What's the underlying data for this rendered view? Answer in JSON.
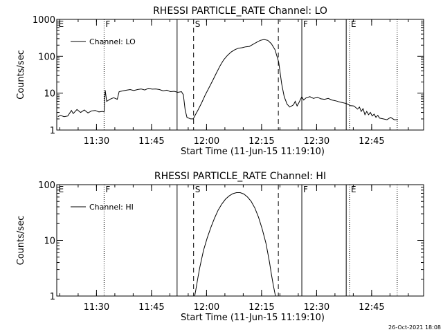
{
  "colors": {
    "background": "#ffffff",
    "ink": "#000000"
  },
  "footer": {
    "timestamp": "26-Oct-2021 18:08"
  },
  "chart_data": [
    {
      "type": "line",
      "title": "RHESSI PARTICLE_RATE Channel: LO",
      "xlabel": "Start Time (11-Jun-15 11:19:10)",
      "ylabel": "Counts/sec",
      "yscale": "log",
      "ylim": [
        1,
        1000
      ],
      "xlim": [
        0,
        100
      ],
      "x_unit": "minutes after 11:19:10",
      "legend": {
        "position": "top-left",
        "label": "Channel: LO"
      },
      "xticks": [
        {
          "label": "11:30",
          "x": 10.83
        },
        {
          "label": "11:45",
          "x": 25.83
        },
        {
          "label": "12:00",
          "x": 40.83
        },
        {
          "label": "12:15",
          "x": 55.83
        },
        {
          "label": "12:30",
          "x": 70.83
        },
        {
          "label": "12:45",
          "x": 85.83
        }
      ],
      "yticks": [
        {
          "label": "1",
          "value": 1
        },
        {
          "label": "10",
          "value": 10
        },
        {
          "label": "100",
          "value": 100
        },
        {
          "label": "1000",
          "value": 1000
        }
      ],
      "markers": [
        {
          "x": 12.9,
          "style": "dotted",
          "label": "F"
        },
        {
          "x": 32.8,
          "style": "solid",
          "label": ""
        },
        {
          "x": 37.3,
          "style": "dashed",
          "label": "S"
        },
        {
          "x": 60.4,
          "style": "dashed",
          "label": ""
        },
        {
          "x": 66.8,
          "style": "solid",
          "label": "F"
        },
        {
          "x": 78.9,
          "style": "solid",
          "label": ""
        },
        {
          "x": 79.8,
          "style": "dotted",
          "label": "E"
        },
        {
          "x": 92.8,
          "style": "dotted",
          "label": ""
        }
      ],
      "edge_label": {
        "x": 0.3,
        "label": "E"
      },
      "series": [
        {
          "name": "Channel: LO",
          "points": [
            [
              0.3,
              2.3
            ],
            [
              1,
              2.5
            ],
            [
              2,
              2.3
            ],
            [
              3,
              2.4
            ],
            [
              4,
              3.4
            ],
            [
              4.5,
              2.8
            ],
            [
              5.5,
              3.6
            ],
            [
              6.5,
              3.0
            ],
            [
              7.5,
              3.5
            ],
            [
              8.5,
              2.9
            ],
            [
              9.5,
              3.3
            ],
            [
              10.5,
              3.4
            ],
            [
              11.5,
              3.1
            ],
            [
              12.5,
              3.2
            ],
            [
              12.9,
              3.1
            ],
            [
              13.2,
              12
            ],
            [
              13.6,
              6.0
            ],
            [
              14.5,
              6.8
            ],
            [
              15.5,
              7.5
            ],
            [
              16.5,
              6.8
            ],
            [
              17,
              11
            ],
            [
              18,
              11.5
            ],
            [
              19,
              12
            ],
            [
              20,
              12.5
            ],
            [
              21,
              11.8
            ],
            [
              22,
              12.5
            ],
            [
              23,
              13
            ],
            [
              24,
              12.2
            ],
            [
              25,
              13.5
            ],
            [
              26,
              12.8
            ],
            [
              27,
              13
            ],
            [
              28,
              12.5
            ],
            [
              29,
              11.5
            ],
            [
              30,
              12
            ],
            [
              31,
              11
            ],
            [
              32,
              11.2
            ],
            [
              33,
              10.5
            ],
            [
              34,
              11
            ],
            [
              34.5,
              9
            ],
            [
              35,
              3.5
            ],
            [
              35.5,
              2.2
            ],
            [
              36.5,
              2.0
            ],
            [
              37.2,
              2.0
            ],
            [
              37.8,
              2.6
            ],
            [
              38.5,
              3.5
            ],
            [
              39.5,
              5.5
            ],
            [
              40.5,
              9
            ],
            [
              41.5,
              14
            ],
            [
              42.5,
              22
            ],
            [
              43.5,
              35
            ],
            [
              44.5,
              55
            ],
            [
              45.5,
              80
            ],
            [
              46.5,
              105
            ],
            [
              47.5,
              130
            ],
            [
              48.5,
              150
            ],
            [
              49.5,
              165
            ],
            [
              50.5,
              170
            ],
            [
              51.5,
              180
            ],
            [
              52.5,
              185
            ],
            [
              53.5,
              210
            ],
            [
              54.5,
              240
            ],
            [
              55.5,
              270
            ],
            [
              56.5,
              285
            ],
            [
              57.5,
              270
            ],
            [
              58.5,
              220
            ],
            [
              59.5,
              150
            ],
            [
              60.5,
              70
            ],
            [
              61.3,
              18
            ],
            [
              62,
              8
            ],
            [
              62.8,
              5
            ],
            [
              63.5,
              4.2
            ],
            [
              64.5,
              4.8
            ],
            [
              65,
              6
            ],
            [
              65.5,
              4.5
            ],
            [
              66,
              5.5
            ],
            [
              66.8,
              8
            ],
            [
              67.3,
              6.5
            ],
            [
              68,
              7.5
            ],
            [
              69,
              8.0
            ],
            [
              70,
              7.2
            ],
            [
              71,
              7.8
            ],
            [
              72,
              7.0
            ],
            [
              73,
              6.8
            ],
            [
              74,
              7.2
            ],
            [
              75,
              6.5
            ],
            [
              76,
              6.2
            ],
            [
              77,
              5.8
            ],
            [
              78,
              5.5
            ],
            [
              79,
              5.2
            ],
            [
              80,
              4.6
            ],
            [
              81,
              4.5
            ],
            [
              82,
              3.7
            ],
            [
              82.5,
              4.2
            ],
            [
              83,
              3.2
            ],
            [
              83.5,
              3.8
            ],
            [
              84,
              2.6
            ],
            [
              84.5,
              3.2
            ],
            [
              85,
              2.6
            ],
            [
              85.5,
              3.0
            ],
            [
              86,
              2.4
            ],
            [
              86.5,
              2.7
            ],
            [
              87,
              2.2
            ],
            [
              87.5,
              2.5
            ],
            [
              88,
              2.1
            ],
            [
              89,
              2.0
            ],
            [
              90,
              1.9
            ],
            [
              91,
              2.2
            ],
            [
              92,
              1.9
            ],
            [
              93,
              1.9
            ]
          ]
        }
      ]
    },
    {
      "type": "line",
      "title": "RHESSI PARTICLE_RATE Channel: HI",
      "xlabel": "Start Time (11-Jun-15 11:19:10)",
      "ylabel": "Counts/sec",
      "yscale": "log",
      "ylim": [
        1,
        100
      ],
      "xlim": [
        0,
        100
      ],
      "x_unit": "minutes after 11:19:10",
      "legend": {
        "position": "top-left",
        "label": "Channel: HI"
      },
      "xticks": [
        {
          "label": "11:30",
          "x": 10.83
        },
        {
          "label": "11:45",
          "x": 25.83
        },
        {
          "label": "12:00",
          "x": 40.83
        },
        {
          "label": "12:15",
          "x": 55.83
        },
        {
          "label": "12:30",
          "x": 70.83
        },
        {
          "label": "12:45",
          "x": 85.83
        }
      ],
      "yticks": [
        {
          "label": "1",
          "value": 1
        },
        {
          "label": "10",
          "value": 10
        },
        {
          "label": "100",
          "value": 100
        }
      ],
      "markers": [
        {
          "x": 12.9,
          "style": "dotted",
          "label": "F"
        },
        {
          "x": 32.8,
          "style": "solid",
          "label": ""
        },
        {
          "x": 37.3,
          "style": "dashed",
          "label": "S"
        },
        {
          "x": 60.4,
          "style": "dashed",
          "label": ""
        },
        {
          "x": 66.8,
          "style": "solid",
          "label": "F"
        },
        {
          "x": 78.9,
          "style": "solid",
          "label": ""
        },
        {
          "x": 79.8,
          "style": "dotted",
          "label": "E"
        },
        {
          "x": 92.8,
          "style": "dotted",
          "label": ""
        }
      ],
      "edge_label": {
        "x": 0.3,
        "label": "E"
      },
      "series": [
        {
          "name": "Channel: HI",
          "points": [
            [
              37.6,
              1.0
            ],
            [
              38,
              1.4
            ],
            [
              38.5,
              2.2
            ],
            [
              39,
              3.3
            ],
            [
              39.5,
              4.7
            ],
            [
              40,
              6.6
            ],
            [
              41,
              11
            ],
            [
              42,
              17
            ],
            [
              43,
              25
            ],
            [
              44,
              35
            ],
            [
              45,
              45
            ],
            [
              46,
              55
            ],
            [
              47,
              63
            ],
            [
              48,
              69
            ],
            [
              49,
              72
            ],
            [
              50,
              72
            ],
            [
              51,
              68
            ],
            [
              52,
              60
            ],
            [
              53,
              50
            ],
            [
              54,
              38
            ],
            [
              55,
              26
            ],
            [
              56,
              16
            ],
            [
              57,
              9
            ],
            [
              57.5,
              6
            ],
            [
              58,
              4
            ],
            [
              58.5,
              2.5
            ],
            [
              59,
              1.6
            ],
            [
              59.5,
              1.1
            ],
            [
              59.6,
              1.0
            ]
          ]
        }
      ]
    }
  ]
}
